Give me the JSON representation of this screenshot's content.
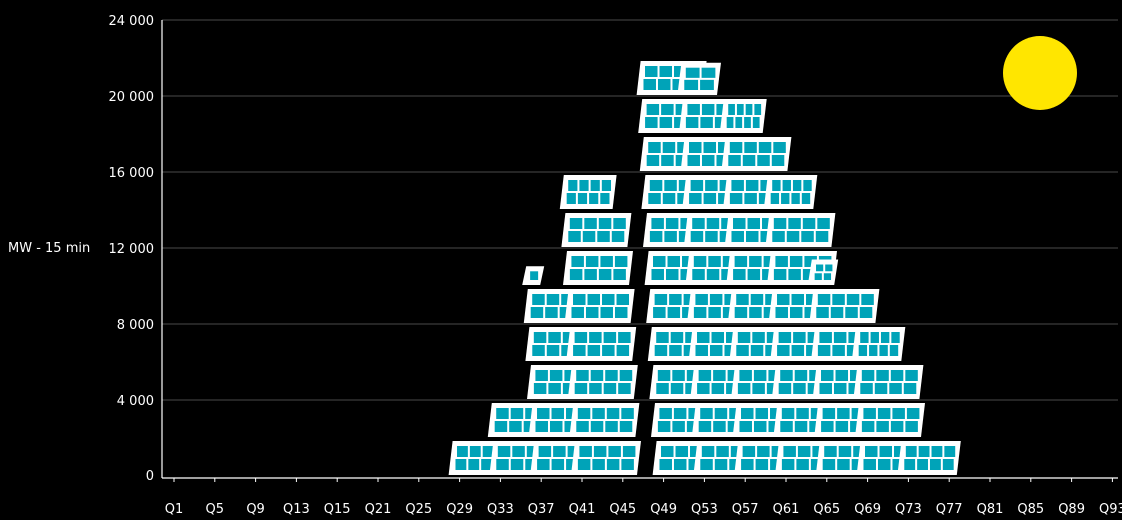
{
  "chart_data": {
    "type": "bar",
    "ylabel": "MW - 15 min",
    "ylim": [
      0,
      24000
    ],
    "y_ticks": [
      {
        "value": 0,
        "label": "0"
      },
      {
        "value": 4000,
        "label": "4 000"
      },
      {
        "value": 8000,
        "label": "8 000"
      },
      {
        "value": 12000,
        "label": "12 000"
      },
      {
        "value": 16000,
        "label": "16 000"
      },
      {
        "value": 20000,
        "label": "20 000"
      },
      {
        "value": 24000,
        "label": "24 000"
      }
    ],
    "grid": true,
    "categories": [
      "Q1",
      "Q5",
      "Q9",
      "Q13",
      "Q15",
      "Q21",
      "Q25",
      "Q29",
      "Q33",
      "Q37",
      "Q41",
      "Q45",
      "Q49",
      "Q53",
      "Q57",
      "Q61",
      "Q65",
      "Q69",
      "Q73",
      "Q77",
      "Q81",
      "Q85",
      "Q89",
      "Q93"
    ],
    "values": [
      0,
      0,
      0,
      0,
      0,
      0,
      0,
      1800,
      4100,
      10400,
      15600,
      0,
      22200,
      21200,
      19300,
      15500,
      10800,
      7500,
      1800,
      0,
      0,
      0,
      0,
      0
    ],
    "colors": {
      "background": "#000000",
      "panel": "#ffffff",
      "cell": "#00a3b8",
      "grid": "#4a4a4a",
      "sun": "#ffe600"
    },
    "decoration": {
      "sun": true,
      "sun_position": "top-right"
    }
  }
}
